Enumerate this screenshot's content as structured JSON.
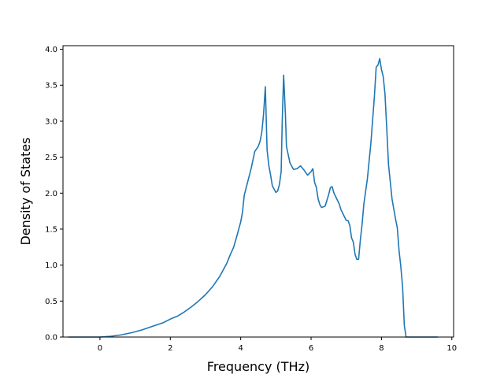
{
  "chart_data": {
    "type": "line",
    "title": "",
    "xlabel": "Frequency (THz)",
    "ylabel": "Density of States",
    "xlim": [
      -1.05,
      10.05
    ],
    "ylim": [
      0.0,
      4.05
    ],
    "xticks": [
      0,
      2,
      4,
      6,
      8,
      10
    ],
    "xtick_labels": [
      "0",
      "2",
      "4",
      "6",
      "8",
      "10"
    ],
    "yticks": [
      0.0,
      0.5,
      1.0,
      1.5,
      2.0,
      2.5,
      3.0,
      3.5,
      4.0
    ],
    "ytick_labels": [
      "0.0",
      "0.5",
      "1.0",
      "1.5",
      "2.0",
      "2.5",
      "3.0",
      "3.5",
      "4.0"
    ],
    "grid": false,
    "colors": {
      "line": "#1f77b4",
      "axes": "#000000"
    },
    "series": [
      {
        "x": [
          -0.9,
          -0.5,
          0.0,
          0.3,
          0.6,
          0.9,
          1.2,
          1.5,
          1.8,
          2.0,
          2.2,
          2.4,
          2.6,
          2.8,
          3.0,
          3.2,
          3.4,
          3.5,
          3.6,
          3.7,
          3.8,
          3.9,
          4.0,
          4.05,
          4.1,
          4.2,
          4.3,
          4.4,
          4.5,
          4.55,
          4.6,
          4.65,
          4.7,
          4.75,
          4.8,
          4.85,
          4.9,
          5.0,
          5.05,
          5.1,
          5.15,
          5.18,
          5.22,
          5.27,
          5.3,
          5.4,
          5.5,
          5.6,
          5.7,
          5.8,
          5.9,
          6.0,
          6.05,
          6.1,
          6.15,
          6.2,
          6.25,
          6.3,
          6.4,
          6.5,
          6.55,
          6.6,
          6.65,
          6.7,
          6.8,
          6.85,
          6.9,
          7.0,
          7.05,
          7.1,
          7.15,
          7.2,
          7.25,
          7.3,
          7.35,
          7.4,
          7.45,
          7.5,
          7.6,
          7.7,
          7.8,
          7.85,
          7.9,
          7.95,
          8.0,
          8.05,
          8.1,
          8.15,
          8.2,
          8.3,
          8.4,
          8.45,
          8.5,
          8.55,
          8.6,
          8.65,
          8.7,
          8.75,
          9.0,
          9.6
        ],
        "y": [
          0.0,
          0.0,
          0.0,
          0.01,
          0.03,
          0.06,
          0.1,
          0.15,
          0.2,
          0.25,
          0.29,
          0.35,
          0.42,
          0.5,
          0.59,
          0.7,
          0.84,
          0.93,
          1.02,
          1.14,
          1.25,
          1.42,
          1.6,
          1.73,
          1.97,
          2.16,
          2.35,
          2.58,
          2.65,
          2.72,
          2.85,
          3.1,
          3.48,
          2.6,
          2.38,
          2.25,
          2.1,
          2.01,
          2.03,
          2.12,
          2.3,
          3.0,
          3.64,
          3.1,
          2.65,
          2.42,
          2.33,
          2.34,
          2.38,
          2.32,
          2.25,
          2.3,
          2.34,
          2.15,
          2.08,
          1.92,
          1.84,
          1.8,
          1.82,
          1.98,
          2.08,
          2.09,
          2.0,
          1.95,
          1.85,
          1.77,
          1.72,
          1.62,
          1.62,
          1.55,
          1.38,
          1.32,
          1.15,
          1.08,
          1.08,
          1.35,
          1.57,
          1.85,
          2.2,
          2.7,
          3.35,
          3.75,
          3.78,
          3.87,
          3.72,
          3.62,
          3.38,
          2.9,
          2.4,
          1.92,
          1.64,
          1.52,
          1.2,
          0.98,
          0.7,
          0.16,
          0.0,
          0.0,
          0.0,
          0.0
        ]
      }
    ]
  }
}
